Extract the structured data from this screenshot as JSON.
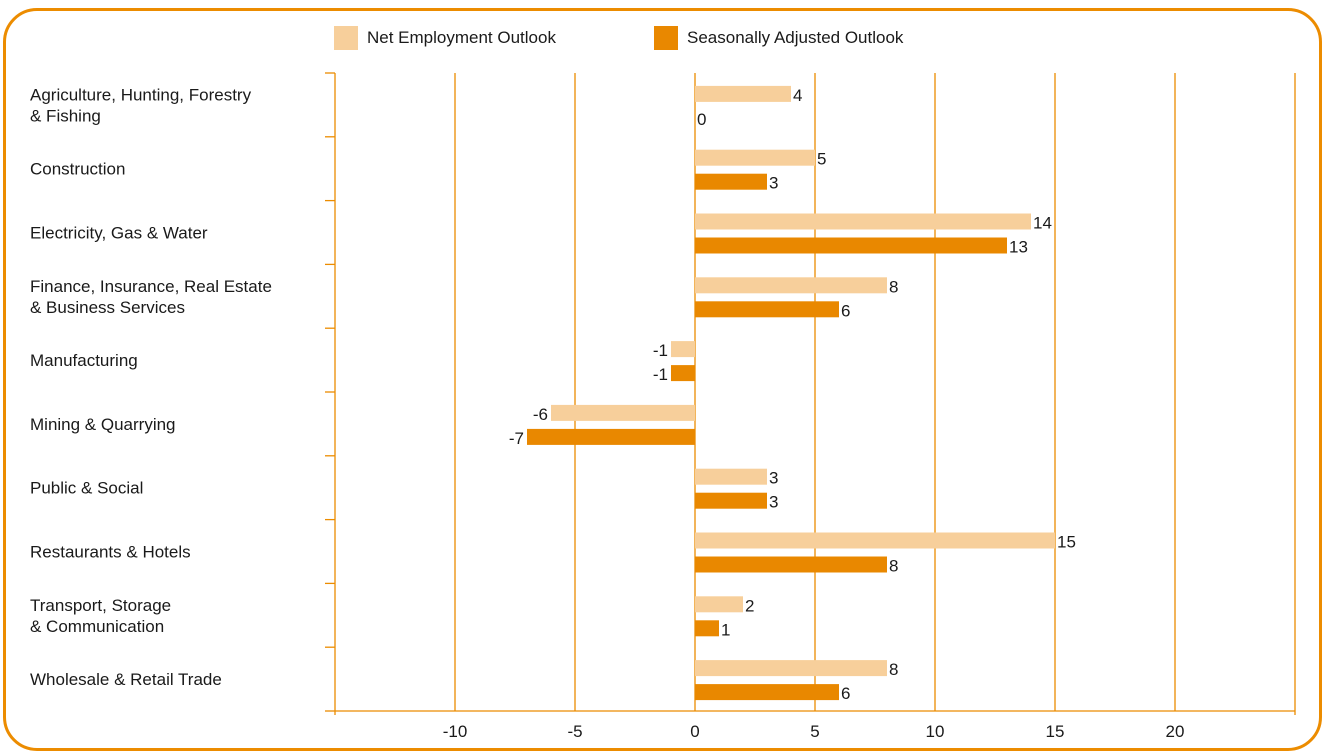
{
  "chart_data": {
    "type": "bar",
    "orientation": "horizontal",
    "categories": [
      "Agriculture, Hunting, Forestry\n& Fishing",
      "Construction",
      "Electricity, Gas & Water",
      "Finance, Insurance, Real Estate\n& Business Services",
      "Manufacturing",
      "Mining & Quarrying",
      "Public & Social",
      "Restaurants & Hotels",
      "Transport, Storage\n& Communication",
      "Wholesale & Retail Trade"
    ],
    "series": [
      {
        "name": "Net Employment Outlook",
        "color": "#f7cf9b",
        "values": [
          4,
          5,
          14,
          8,
          -1,
          -6,
          3,
          15,
          2,
          8
        ]
      },
      {
        "name": "Seasonally Adjusted Outlook",
        "color": "#e98800",
        "values": [
          0,
          3,
          13,
          6,
          -1,
          -7,
          3,
          8,
          1,
          6
        ]
      }
    ],
    "xlim": [
      -15,
      25
    ],
    "xticks": [
      -10,
      -5,
      0,
      5,
      10,
      15,
      20
    ],
    "grid": true,
    "legend_position": "top-center",
    "gridline_color": "#ec8c00",
    "frame_color": "#ec8c00"
  }
}
